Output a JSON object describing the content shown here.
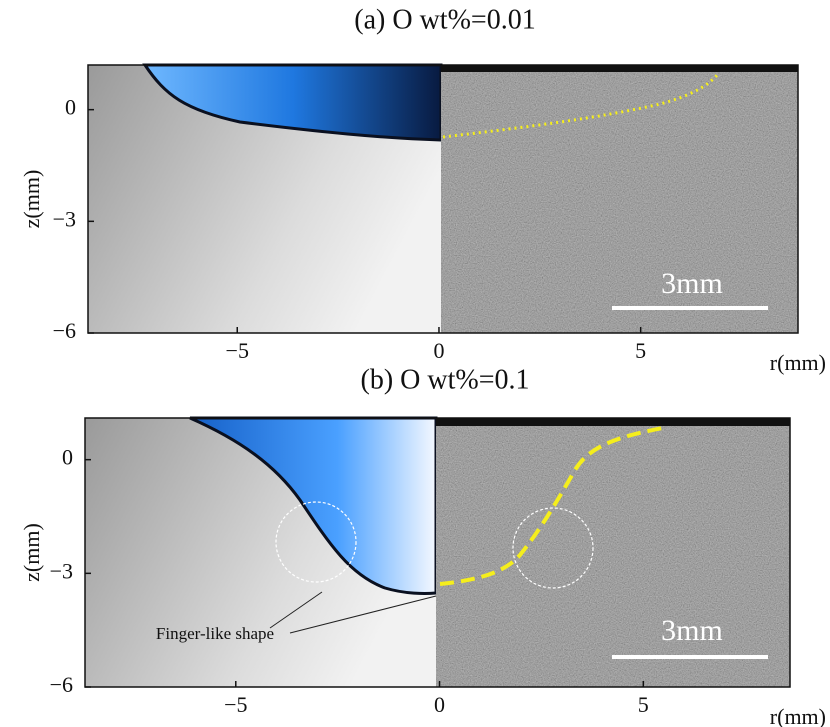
{
  "panels": [
    {
      "title": "(a) O wt%=0.01",
      "xlabel": "r(mm)",
      "ylabel": "z(mm)",
      "xlim": [
        -8.7,
        8.9
      ],
      "ylim": [
        -6,
        1.2
      ],
      "xticks": [
        {
          "value": -5,
          "label": "−5"
        },
        0,
        5
      ],
      "yticks": [
        0,
        {
          "value": -3,
          "label": "−3"
        },
        {
          "value": -6,
          "label": "−6"
        }
      ],
      "scale_bar": "3mm"
    },
    {
      "title": "(b) O wt%=0.1",
      "xlabel": "r(mm)",
      "ylabel": "z(mm)",
      "xlim": [
        -8.7,
        8.6
      ],
      "ylim": [
        -6,
        1.1
      ],
      "xticks": [
        {
          "value": -5,
          "label": "−5"
        },
        0,
        5
      ],
      "yticks": [
        0,
        {
          "value": -3,
          "label": "−3"
        },
        {
          "value": -6,
          "label": "−6"
        }
      ],
      "scale_bar": "3mm",
      "annotation": "Finger-like shape"
    }
  ]
}
